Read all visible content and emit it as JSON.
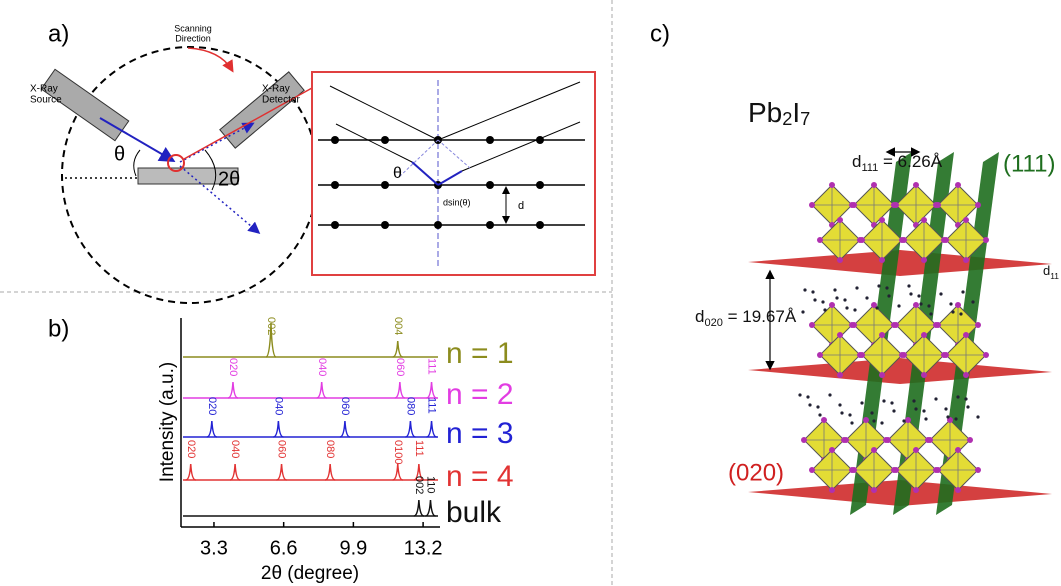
{
  "panel_a": {
    "label": "a)",
    "scanning": [
      "Scanning",
      "Direction"
    ],
    "source": [
      "X-Ray",
      "Source"
    ],
    "detector": [
      "X-Ray",
      "Detector"
    ],
    "theta": "θ",
    "two_theta": "2θ",
    "inset": {
      "theta": "θ",
      "dsin": "dsin(θ)",
      "d": "d"
    }
  },
  "panel_b": {
    "label": "b)",
    "y_label": "Intensity (a.u.)",
    "x_label": "2θ (degree)",
    "xlim": [
      1.74,
      14.0
    ],
    "xticks": [
      3.3,
      6.6,
      9.9,
      13.2
    ],
    "series": [
      {
        "name": "n = 1",
        "color": "#8c8c1e",
        "peaks": [
          {
            "x": 6.0,
            "label": "002"
          },
          {
            "x": 12.0,
            "label": "004"
          }
        ]
      },
      {
        "name": "n = 2",
        "color": "#e23de2",
        "peaks": [
          {
            "x": 4.2,
            "label": "020"
          },
          {
            "x": 8.4,
            "label": "040"
          },
          {
            "x": 12.1,
            "label": "060"
          },
          {
            "x": 13.6,
            "label": "111"
          }
        ]
      },
      {
        "name": "n = 3",
        "color": "#2222d4",
        "peaks": [
          {
            "x": 3.2,
            "label": "020"
          },
          {
            "x": 6.35,
            "label": "040"
          },
          {
            "x": 9.5,
            "label": "060"
          },
          {
            "x": 12.6,
            "label": "080"
          },
          {
            "x": 13.6,
            "label": "111"
          }
        ]
      },
      {
        "name": "n = 4",
        "color": "#e23333",
        "peaks": [
          {
            "x": 2.2,
            "label": "020"
          },
          {
            "x": 4.3,
            "label": "040"
          },
          {
            "x": 6.5,
            "label": "060"
          },
          {
            "x": 8.8,
            "label": "080"
          },
          {
            "x": 12.0,
            "label": "0100"
          },
          {
            "x": 13.0,
            "label": "111"
          }
        ]
      },
      {
        "name": "bulk",
        "color": "#111111",
        "peaks": [
          {
            "x": 13.0,
            "label": "002"
          },
          {
            "x": 13.55,
            "label": "110"
          }
        ]
      }
    ]
  },
  "panel_c": {
    "label": "c)",
    "formula": {
      "a": "Pb",
      "a_sub": "2",
      "b": "I",
      "b_sub": "7"
    },
    "d111": {
      "symbol": "d",
      "sub": "111",
      "rest": " = 6.26Å"
    },
    "d020": {
      "symbol": "d",
      "sub": "020",
      "rest": " = 19.67Å"
    },
    "plane_111": "(111)",
    "plane_020": "(020)",
    "d_cut": {
      "symbol": "d",
      "sub": "11"
    }
  }
}
